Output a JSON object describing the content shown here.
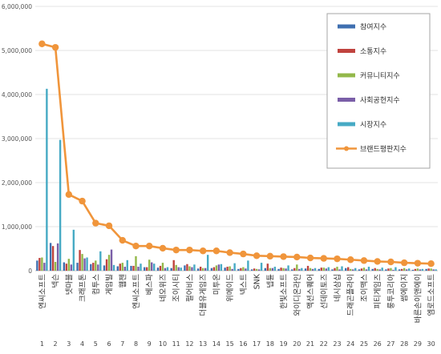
{
  "chart_data": {
    "type": "bar",
    "title": "",
    "xlabel": "",
    "ylabel": "",
    "ylim": [
      0,
      6000000
    ],
    "y_ticks": [
      "0",
      "1,000,000",
      "2,000,000",
      "3,000,000",
      "4,000,000",
      "5,000,000",
      "6,000,000"
    ],
    "grid": true,
    "legend_position": "top-right",
    "categories": [
      "엔씨소프트",
      "넥슨",
      "넷마블",
      "크래프톤",
      "컴투스",
      "게임빌",
      "웹젠",
      "엔씨소프트",
      "베스파",
      "네오위즈",
      "조이시티",
      "펄어비스",
      "더블유게임즈",
      "미투온",
      "위메이드",
      "넥스트",
      "SNK",
      "넵튠",
      "한빛소프트",
      "와이디온라인",
      "액션스퀘어",
      "선데이토즈",
      "네시삼십",
      "드래곤플라이",
      "조이맥스",
      "피티게임즈",
      "룽투코리아",
      "썸에이지",
      "바른손이앤에이",
      "엠로드소프트"
    ],
    "x_numbers": [
      "1",
      "2",
      "3",
      "4",
      "5",
      "6",
      "7",
      "8",
      "9",
      "10",
      "11",
      "12",
      "13",
      "14",
      "15",
      "16",
      "17",
      "18",
      "19",
      "20",
      "21",
      "22",
      "23",
      "24",
      "25",
      "26",
      "27",
      "28",
      "29",
      "30"
    ],
    "series": [
      {
        "name": "참여지수",
        "type": "bar",
        "color": "#3f6fb0",
        "values": [
          230000,
          630000,
          190000,
          180000,
          150000,
          120000,
          100000,
          110000,
          80000,
          70000,
          60000,
          120000,
          50000,
          60000,
          70000,
          40000,
          30000,
          60000,
          40000,
          30000,
          50000,
          40000,
          30000,
          60000,
          30000,
          40000,
          30000,
          30000,
          20000,
          40000
        ]
      },
      {
        "name": "소통지수",
        "type": "bar",
        "color": "#c0433e",
        "values": [
          290000,
          560000,
          160000,
          470000,
          180000,
          260000,
          160000,
          110000,
          80000,
          110000,
          240000,
          150000,
          90000,
          80000,
          90000,
          60000,
          50000,
          160000,
          70000,
          60000,
          110000,
          70000,
          60000,
          80000,
          50000,
          60000,
          50000,
          40000,
          40000,
          50000
        ]
      },
      {
        "name": "커뮤니티지수",
        "type": "bar",
        "color": "#93b84a",
        "values": [
          300000,
          200000,
          270000,
          380000,
          230000,
          360000,
          180000,
          330000,
          250000,
          180000,
          130000,
          100000,
          60000,
          120000,
          100000,
          80000,
          40000,
          60000,
          60000,
          140000,
          60000,
          70000,
          90000,
          40000,
          70000,
          40000,
          60000,
          60000,
          50000,
          50000
        ]
      },
      {
        "name": "사회공헌지수",
        "type": "bar",
        "color": "#7a5ea8",
        "values": [
          180000,
          620000,
          140000,
          280000,
          140000,
          480000,
          90000,
          90000,
          190000,
          60000,
          80000,
          80000,
          60000,
          140000,
          40000,
          50000,
          30000,
          60000,
          50000,
          40000,
          40000,
          50000,
          30000,
          30000,
          30000,
          30000,
          20000,
          30000,
          30000,
          30000
        ]
      },
      {
        "name": "시장지수",
        "type": "bar",
        "color": "#46aac4",
        "values": [
          4130000,
          2970000,
          930000,
          300000,
          440000,
          130000,
          240000,
          160000,
          160000,
          80000,
          70000,
          140000,
          360000,
          150000,
          170000,
          230000,
          180000,
          90000,
          120000,
          60000,
          60000,
          80000,
          100000,
          60000,
          90000,
          70000,
          80000,
          50000,
          40000,
          30000
        ]
      },
      {
        "name": "브랜드평판지수",
        "type": "line",
        "color": "#f0953b",
        "values": [
          5150000,
          5070000,
          1730000,
          1580000,
          1080000,
          1020000,
          690000,
          560000,
          560000,
          510000,
          470000,
          470000,
          450000,
          450000,
          410000,
          380000,
          340000,
          330000,
          320000,
          310000,
          290000,
          280000,
          270000,
          250000,
          230000,
          210000,
          200000,
          180000,
          170000,
          160000
        ]
      }
    ]
  }
}
